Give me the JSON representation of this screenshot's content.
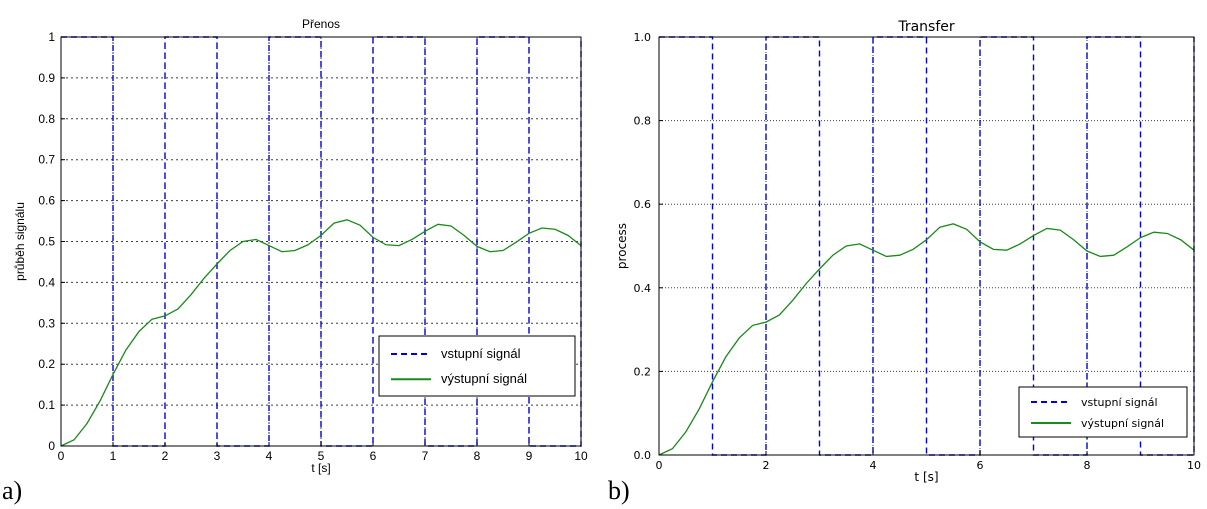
{
  "panel_labels": {
    "a": "a)",
    "b": "b)"
  },
  "colors": {
    "input": "#0000e0",
    "output": "#1a8a1a",
    "grid": "#000000"
  },
  "chart_data": [
    {
      "type": "line",
      "title": "Přenos",
      "xlabel": "t [s]",
      "ylabel": "průběh signálu",
      "xlim": [
        0,
        10
      ],
      "ylim": [
        0,
        1
      ],
      "xticks": [
        0,
        1,
        2,
        3,
        4,
        5,
        6,
        7,
        8,
        9,
        10
      ],
      "xtick_labels": [
        "0",
        "1",
        "2",
        "3",
        "4",
        "5",
        "6",
        "7",
        "8",
        "9",
        "10"
      ],
      "yticks": [
        0,
        0.1,
        0.2,
        0.3,
        0.4,
        0.5,
        0.6,
        0.7,
        0.8,
        0.9,
        1
      ],
      "ytick_labels": [
        "0",
        "0.1",
        "0.2",
        "0.3",
        "0.4",
        "0.5",
        "0.6",
        "0.7",
        "0.8",
        "0.9",
        "1"
      ],
      "grid": true,
      "legend_position": "lower-right",
      "series": [
        {
          "name": "vstupní signál",
          "style": "dashed",
          "color": "#0000e0",
          "x": [
            0,
            1,
            1,
            2,
            2,
            3,
            3,
            4,
            4,
            5,
            5,
            6,
            6,
            7,
            7,
            8,
            8,
            9,
            9,
            10,
            10
          ],
          "y": [
            1,
            1,
            0,
            0,
            1,
            1,
            0,
            0,
            1,
            1,
            0,
            0,
            1,
            1,
            0,
            0,
            1,
            1,
            0,
            0,
            1
          ]
        },
        {
          "name": "výstupní signál",
          "style": "solid",
          "color": "#1a8a1a",
          "x": [
            0,
            0.25,
            0.5,
            0.75,
            1.0,
            1.25,
            1.5,
            1.75,
            2.0,
            2.25,
            2.5,
            2.75,
            3.0,
            3.25,
            3.5,
            3.75,
            4.0,
            4.25,
            4.5,
            4.75,
            5.0,
            5.25,
            5.5,
            5.75,
            6.0,
            6.25,
            6.5,
            6.75,
            7.0,
            7.25,
            7.5,
            7.75,
            8.0,
            8.25,
            8.5,
            8.75,
            9.0,
            9.25,
            9.5,
            9.75,
            10.0
          ],
          "y": [
            0,
            0.015,
            0.055,
            0.11,
            0.175,
            0.235,
            0.28,
            0.31,
            0.318,
            0.335,
            0.37,
            0.41,
            0.445,
            0.478,
            0.5,
            0.505,
            0.49,
            0.475,
            0.478,
            0.492,
            0.515,
            0.545,
            0.553,
            0.54,
            0.51,
            0.492,
            0.49,
            0.505,
            0.525,
            0.542,
            0.538,
            0.515,
            0.488,
            0.475,
            0.478,
            0.498,
            0.52,
            0.533,
            0.53,
            0.515,
            0.49
          ]
        }
      ]
    },
    {
      "type": "line",
      "title": "Transfer",
      "xlabel": "t [s]",
      "ylabel": "process",
      "xlim": [
        0,
        10
      ],
      "ylim": [
        0,
        1
      ],
      "xticks": [
        0,
        2,
        4,
        6,
        8,
        10
      ],
      "xtick_labels": [
        "0",
        "2",
        "4",
        "6",
        "8",
        "10"
      ],
      "yticks": [
        0,
        0.2,
        0.4,
        0.6,
        0.8,
        1.0
      ],
      "ytick_labels": [
        "0.0",
        "0.2",
        "0.4",
        "0.6",
        "0.8",
        "1.0"
      ],
      "grid": true,
      "legend_position": "lower-right",
      "series": [
        {
          "name": "vstupní signál",
          "style": "dashed",
          "color": "#0000e0",
          "x": [
            0,
            1,
            1,
            2,
            2,
            3,
            3,
            4,
            4,
            5,
            5,
            6,
            6,
            7,
            7,
            8,
            8,
            9,
            9,
            10,
            10
          ],
          "y": [
            1,
            1,
            0,
            0,
            1,
            1,
            0,
            0,
            1,
            1,
            0,
            0,
            1,
            1,
            0,
            0,
            1,
            1,
            0,
            0,
            1
          ]
        },
        {
          "name": "výstupní signál",
          "style": "solid",
          "color": "#1a8a1a",
          "x": [
            0,
            0.25,
            0.5,
            0.75,
            1.0,
            1.25,
            1.5,
            1.75,
            2.0,
            2.25,
            2.5,
            2.75,
            3.0,
            3.25,
            3.5,
            3.75,
            4.0,
            4.25,
            4.5,
            4.75,
            5.0,
            5.25,
            5.5,
            5.75,
            6.0,
            6.25,
            6.5,
            6.75,
            7.0,
            7.25,
            7.5,
            7.75,
            8.0,
            8.25,
            8.5,
            8.75,
            9.0,
            9.25,
            9.5,
            9.75,
            10.0
          ],
          "y": [
            0,
            0.015,
            0.055,
            0.11,
            0.175,
            0.235,
            0.28,
            0.31,
            0.318,
            0.335,
            0.37,
            0.41,
            0.445,
            0.478,
            0.5,
            0.505,
            0.49,
            0.475,
            0.478,
            0.492,
            0.515,
            0.545,
            0.553,
            0.54,
            0.51,
            0.492,
            0.49,
            0.505,
            0.525,
            0.542,
            0.538,
            0.515,
            0.488,
            0.475,
            0.478,
            0.498,
            0.52,
            0.533,
            0.53,
            0.515,
            0.49
          ]
        }
      ]
    }
  ]
}
